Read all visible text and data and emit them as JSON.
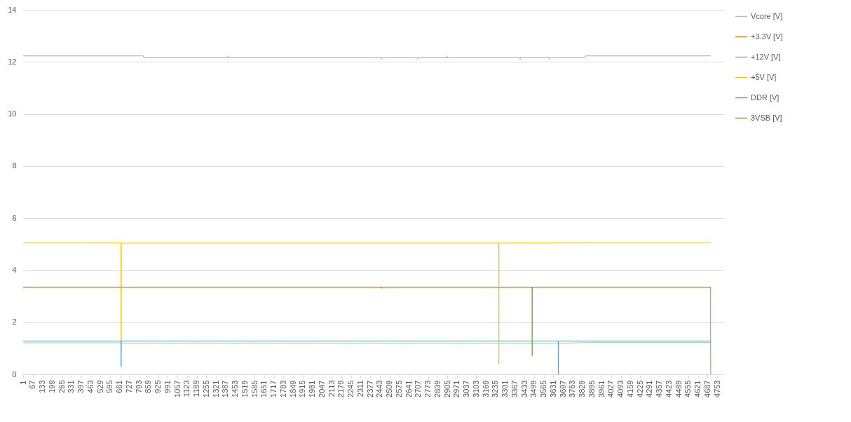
{
  "chart_data": {
    "type": "line",
    "xlim": [
      1,
      4800
    ],
    "xticks": [
      1,
      67,
      133,
      199,
      265,
      331,
      397,
      463,
      529,
      595,
      661,
      727,
      793,
      859,
      925,
      991,
      1057,
      1123,
      1189,
      1255,
      1321,
      1387,
      1453,
      1519,
      1585,
      1651,
      1717,
      1783,
      1849,
      1915,
      1981,
      2047,
      2113,
      2179,
      2245,
      2311,
      2377,
      2443,
      2509,
      2575,
      2641,
      2707,
      2773,
      2839,
      2905,
      2971,
      3037,
      3103,
      3169,
      3235,
      3301,
      3367,
      3433,
      3499,
      3565,
      3631,
      3697,
      3763,
      3829,
      3895,
      3961,
      4027,
      4093,
      4159,
      4225,
      4291,
      4357,
      4423,
      4489,
      4555,
      4621,
      4687,
      4753
    ],
    "ylim": [
      0,
      14
    ],
    "yticks": [
      0,
      2,
      4,
      6,
      8,
      10,
      12,
      14
    ],
    "grid": "y",
    "legend": "right",
    "marker": "none",
    "line_style": "solid",
    "series": [
      {
        "name": "Vcore [V]",
        "color": "#a9d18e",
        "x": [
          1,
          300,
          672,
          700,
          800,
          1000,
          1200,
          1400,
          1600,
          1800,
          2000,
          2200,
          2400,
          2600,
          2800,
          3000,
          3200,
          3400,
          3600,
          3858,
          4000,
          4200,
          4400,
          4708
        ],
        "values": [
          1.21,
          1.21,
          1.21,
          1.19,
          1.2,
          1.19,
          1.2,
          1.19,
          1.2,
          1.19,
          1.19,
          1.18,
          1.19,
          1.18,
          1.19,
          1.18,
          1.19,
          1.18,
          1.18,
          1.22,
          1.22,
          1.22,
          1.22,
          1.22
        ]
      },
      {
        "name": "+3.3V [V]",
        "color": "#ed7d31",
        "x": [
          1,
          2450,
          2453,
          2456,
          4707,
          4708
        ],
        "values": [
          3.34,
          3.34,
          3.3,
          3.34,
          3.34,
          0
        ]
      },
      {
        "name": "+12V [V]",
        "color": "#a5a5a5",
        "x": [
          1,
          824,
          828,
          1400,
          1405,
          1410,
          2450,
          2453,
          2456,
          2700,
          2703,
          2706,
          2900,
          2903,
          2906,
          3400,
          3403,
          3406,
          3600,
          3603,
          3606,
          3849,
          3852,
          4708
        ],
        "values": [
          12.23,
          12.23,
          12.16,
          12.16,
          12.23,
          12.16,
          12.16,
          12.1,
          12.16,
          12.16,
          12.1,
          12.16,
          12.16,
          12.23,
          12.16,
          12.16,
          12.1,
          12.16,
          12.16,
          12.1,
          12.16,
          12.16,
          12.23,
          12.23
        ]
      },
      {
        "name": "+5V [V]",
        "color": "#ffc000",
        "x": [
          1,
          400,
          671,
          672,
          673,
          1200,
          3257,
          3258,
          3259,
          3858,
          4200,
          4708
        ],
        "values": [
          5.06,
          5.06,
          5.05,
          1.25,
          5.04,
          5.04,
          5.04,
          0.4,
          5.04,
          5.06,
          5.06,
          5.06
        ]
      },
      {
        "name": "DDR [V]",
        "color": "#5b9bd5",
        "x": [
          1,
          671,
          672,
          673,
          3664,
          3665,
          3666,
          4708
        ],
        "values": [
          1.28,
          1.28,
          0.3,
          1.28,
          1.28,
          0,
          1.28,
          1.28
        ]
      },
      {
        "name": "3VSB [V]",
        "color": "#70ad47",
        "x": [
          1,
          3485,
          3486,
          3487,
          4708
        ],
        "values": [
          3.35,
          3.35,
          0.7,
          3.35,
          3.35
        ]
      }
    ]
  }
}
